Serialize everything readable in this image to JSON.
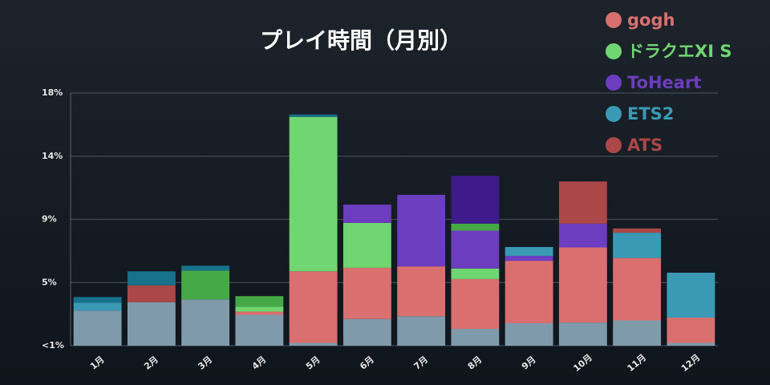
{
  "chart_data": {
    "type": "stacked_bar",
    "title": "プレイ時間（月別）",
    "categories": [
      "1月",
      "2月",
      "3月",
      "4月",
      "5月",
      "6月",
      "7月",
      "8月",
      "9月",
      "10月",
      "11月",
      "12月"
    ],
    "ylim": [
      0,
      18
    ],
    "yticks": [
      {
        "value": 0,
        "label": "<1%"
      },
      {
        "value": 4.5,
        "label": "5%"
      },
      {
        "value": 9,
        "label": "9%"
      },
      {
        "value": 13.5,
        "label": "14%"
      },
      {
        "value": 18,
        "label": "18%"
      }
    ],
    "grid": true,
    "legend": "top-right",
    "series": [
      {
        "color": "#7f9aab",
        "values": [
          2.5,
          3.1,
          3.3,
          2.2,
          0.2,
          1.9,
          2.1,
          1.2,
          1.6,
          1.65,
          1.8,
          0.2
        ]
      },
      {
        "name": "gogh",
        "color": "#d96f6f",
        "values": [
          null,
          null,
          null,
          0.23,
          5.1,
          3.65,
          3.55,
          3.55,
          4.45,
          5.35,
          4.45,
          1.8
        ]
      },
      {
        "name": "ドラクエXI S",
        "color": "#6fd672",
        "values": [
          null,
          null,
          null,
          0.35,
          11.0,
          3.2,
          null,
          0.75,
          null,
          null,
          null,
          null
        ]
      },
      {
        "name": "ToHeart",
        "color": "#6c3dbf",
        "values": [
          null,
          null,
          null,
          null,
          null,
          1.3,
          5.1,
          2.7,
          0.35,
          1.7,
          null,
          null
        ]
      },
      {
        "color": "#45aa45",
        "values": [
          null,
          null,
          2.05,
          0.75,
          null,
          null,
          null,
          0.5,
          null,
          null,
          null,
          null
        ]
      },
      {
        "color": "#3e1a8a",
        "values": [
          null,
          null,
          null,
          null,
          null,
          null,
          null,
          3.4,
          null,
          null,
          null,
          null
        ]
      },
      {
        "name": "ETS2",
        "color": "#3a9ab5",
        "values": [
          0.57,
          null,
          null,
          null,
          null,
          null,
          null,
          null,
          0.63,
          null,
          1.8,
          3.2
        ]
      },
      {
        "name": "ATS",
        "color": "#ab4747",
        "values": [
          null,
          1.2,
          null,
          null,
          null,
          null,
          null,
          null,
          null,
          3.0,
          0.3,
          null
        ]
      },
      {
        "color": "#17718a",
        "values": [
          0.4,
          1.0,
          0.35,
          null,
          0.17,
          null,
          null,
          null,
          null,
          null,
          null,
          null
        ]
      }
    ]
  }
}
